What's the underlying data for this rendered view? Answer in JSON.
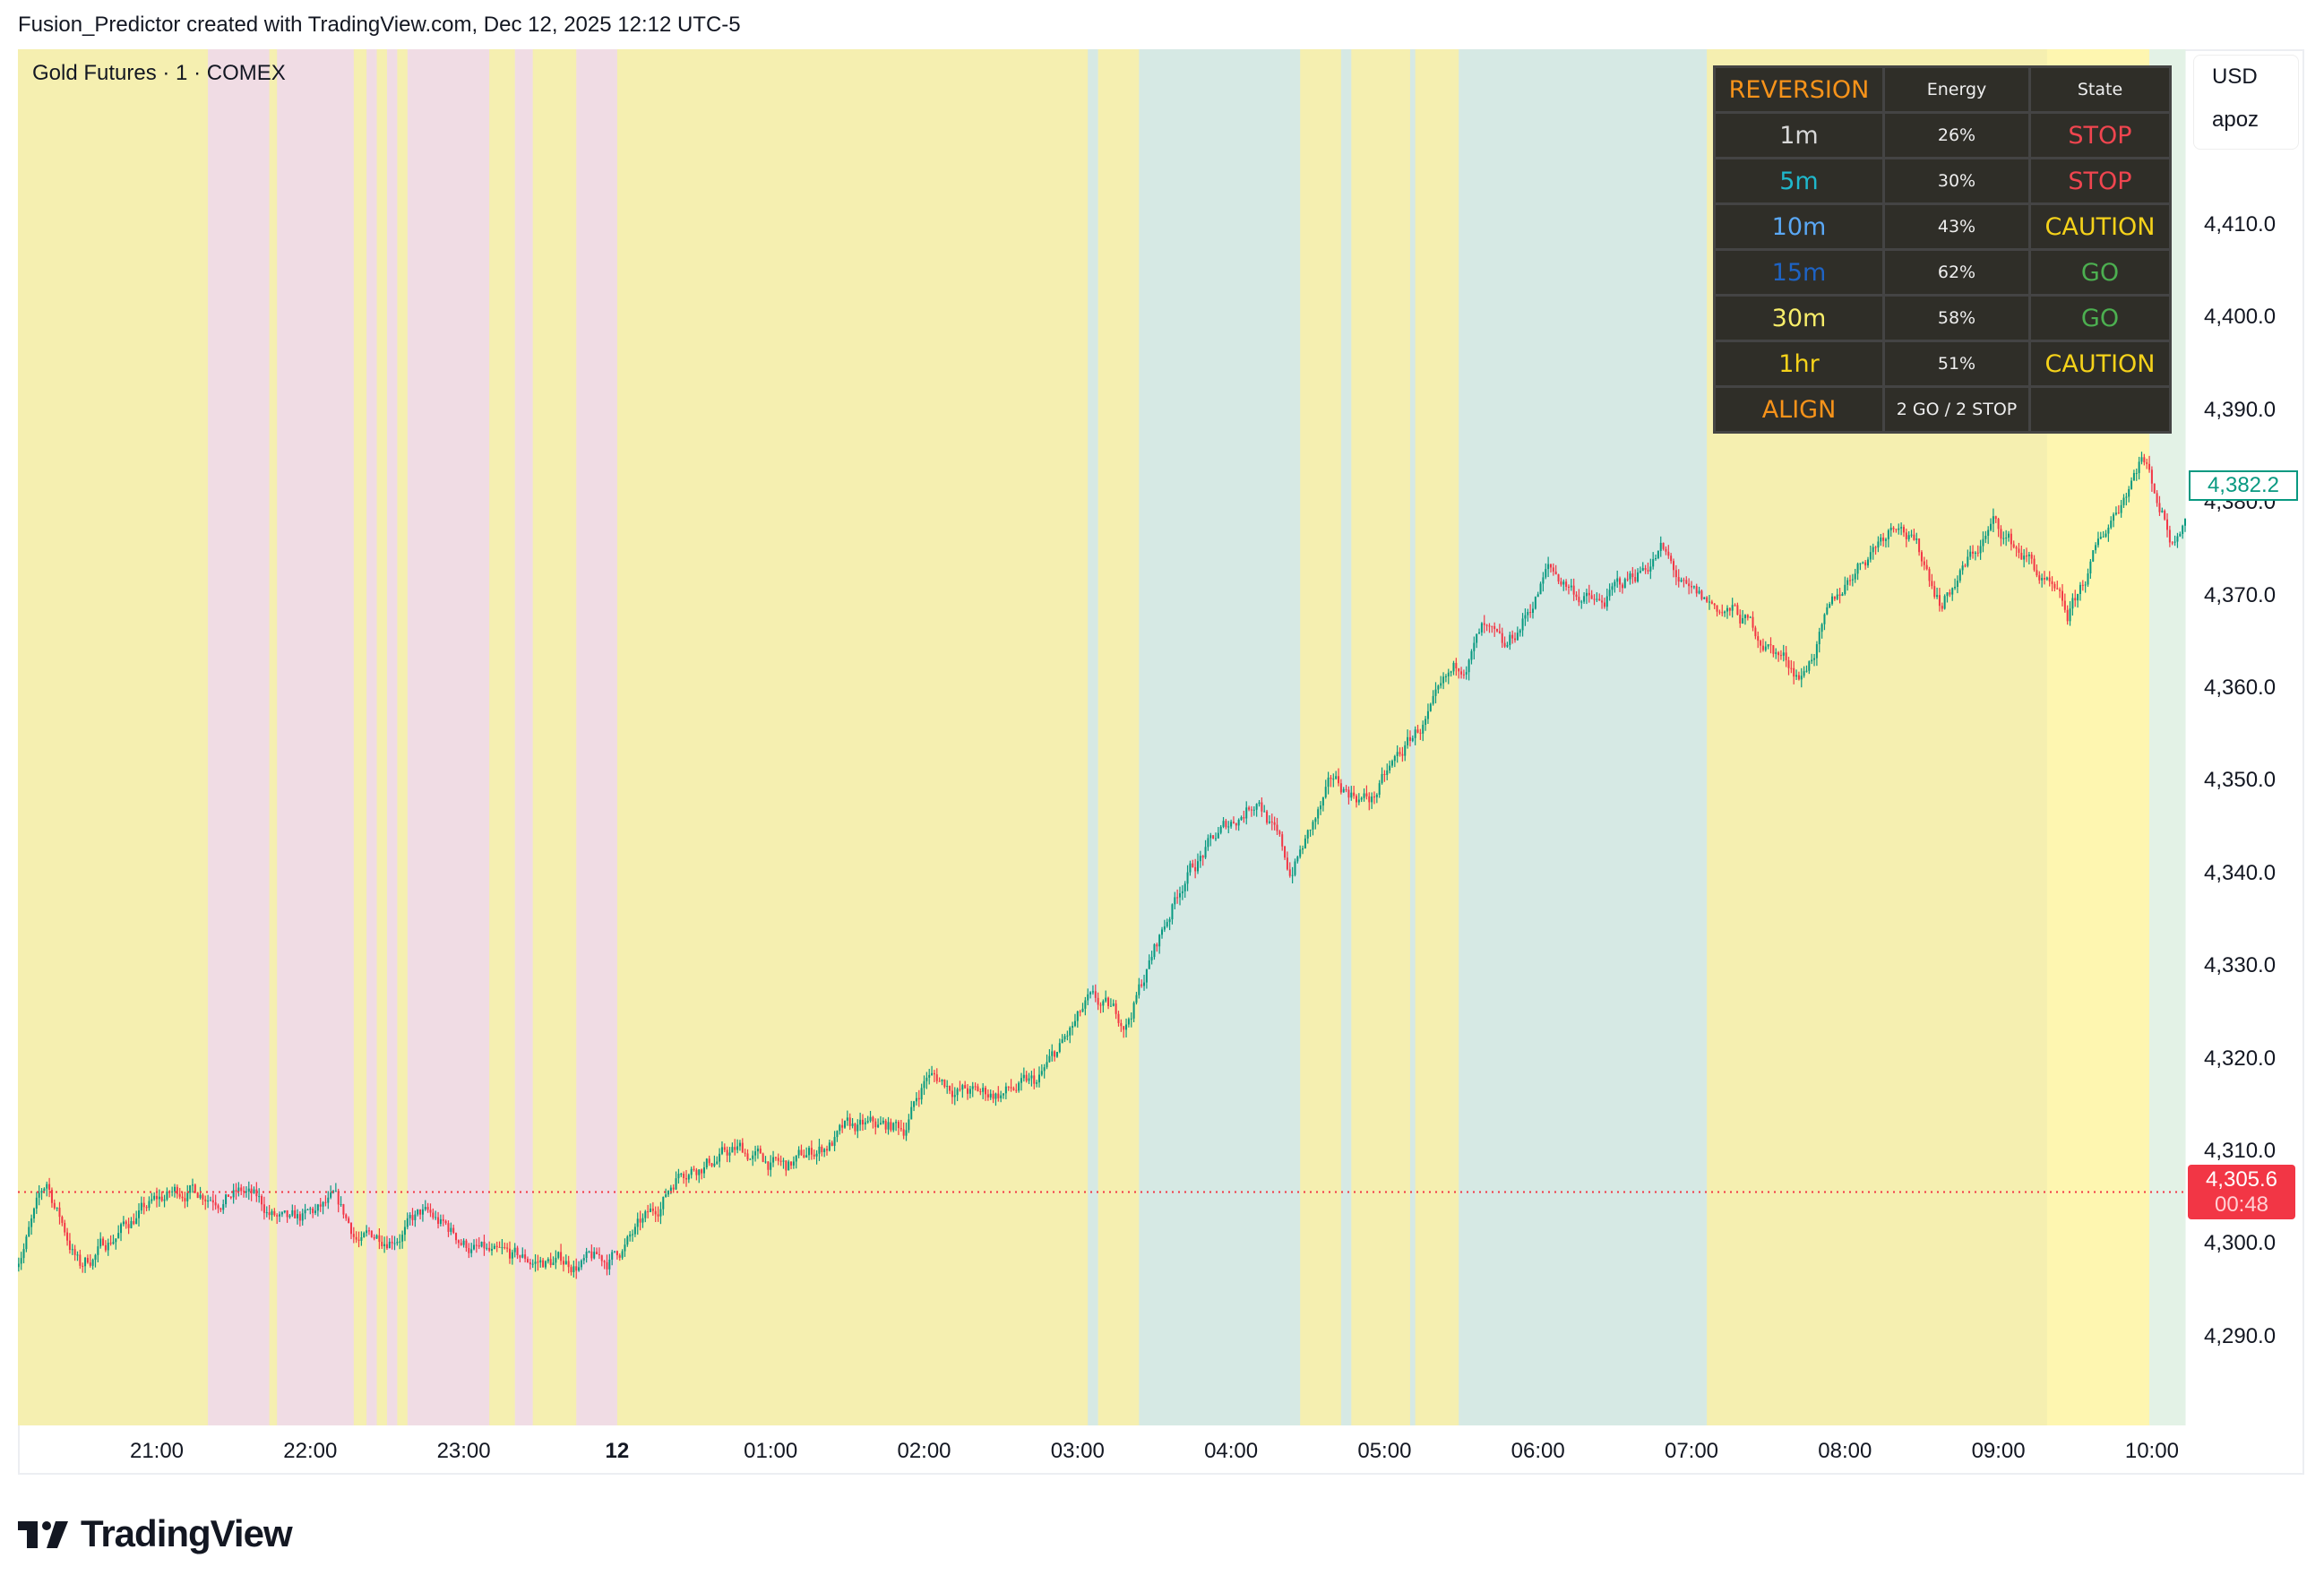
{
  "header": {
    "title": "Fusion_Predictor created with TradingView.com, Dec 12, 2025 12:12 UTC-5"
  },
  "chart": {
    "symbol": "Gold Futures · 1 · COMEX",
    "currency": "USD",
    "unit_label": "apoz",
    "price_ticks": [
      "4,410.0",
      "4,400.0",
      "4,390.0",
      "4,380.0",
      "4,370.0",
      "4,360.0",
      "4,350.0",
      "4,340.0",
      "4,330.0",
      "4,320.0",
      "4,310.0",
      "4,300.0",
      "4,290.0"
    ],
    "time_ticks": [
      {
        "label": "21:00",
        "time": "21:00",
        "bold": false
      },
      {
        "label": "22:00",
        "time": "22:00",
        "bold": false
      },
      {
        "label": "23:00",
        "time": "23:00",
        "bold": false
      },
      {
        "label": "12",
        "time": "00:00",
        "bold": true
      },
      {
        "label": "01:00",
        "time": "01:00",
        "bold": false
      },
      {
        "label": "02:00",
        "time": "02:00",
        "bold": false
      },
      {
        "label": "03:00",
        "time": "03:00",
        "bold": false
      },
      {
        "label": "04:00",
        "time": "04:00",
        "bold": false
      },
      {
        "label": "05:00",
        "time": "05:00",
        "bold": false
      },
      {
        "label": "06:00",
        "time": "06:00",
        "bold": false
      },
      {
        "label": "07:00",
        "time": "07:00",
        "bold": false
      },
      {
        "label": "08:00",
        "time": "08:00",
        "bold": false
      },
      {
        "label": "09:00",
        "time": "09:00",
        "bold": false
      },
      {
        "label": "10:00",
        "time": "10:00",
        "bold": false
      }
    ],
    "last_price": "4,382.2",
    "current_price": "4,305.6",
    "current_price_value": 4305.6,
    "countdown": "00:48",
    "colors": {
      "up": "#089981",
      "down": "#f23645",
      "yellow": "#f5efb0",
      "pink": "#f0dce4",
      "teal": "#d6e9e4",
      "bright_yellow": "#fef6b0",
      "light_green": "#e3f2e6"
    },
    "background_zones": [
      [
        "20:05",
        "21:20",
        "yellow"
      ],
      [
        "21:20",
        "21:44",
        "pink"
      ],
      [
        "21:44",
        "21:47",
        "yellow"
      ],
      [
        "21:47",
        "22:17",
        "pink"
      ],
      [
        "22:17",
        "22:22",
        "yellow"
      ],
      [
        "22:22",
        "22:26",
        "pink"
      ],
      [
        "22:26",
        "22:30",
        "yellow"
      ],
      [
        "22:30",
        "22:34",
        "pink"
      ],
      [
        "22:34",
        "22:38",
        "yellow"
      ],
      [
        "22:38",
        "22:41",
        "pink"
      ],
      [
        "22:41",
        "23:10",
        "pink"
      ],
      [
        "23:10",
        "23:20",
        "yellow"
      ],
      [
        "23:20",
        "23:27",
        "pink"
      ],
      [
        "23:27",
        "23:44",
        "yellow"
      ],
      [
        "23:44",
        "00:00",
        "pink"
      ],
      [
        "00:00",
        "03:04",
        "yellow"
      ],
      [
        "03:04",
        "03:08",
        "teal"
      ],
      [
        "03:08",
        "03:24",
        "yellow"
      ],
      [
        "03:24",
        "04:27",
        "teal"
      ],
      [
        "04:27",
        "04:43",
        "yellow"
      ],
      [
        "04:43",
        "04:47",
        "teal"
      ],
      [
        "04:47",
        "04:57",
        "yellow"
      ],
      [
        "04:57",
        "05:10",
        "yellow"
      ],
      [
        "05:10",
        "05:12",
        "teal"
      ],
      [
        "05:12",
        "05:25",
        "yellow"
      ],
      [
        "05:25",
        "05:29",
        "yellow"
      ],
      [
        "05:29",
        "07:06",
        "teal"
      ],
      [
        "07:06",
        "09:19",
        "yellow"
      ],
      [
        "09:19",
        "09:59",
        "bright_yellow"
      ],
      [
        "09:59",
        "10:13",
        "light_green"
      ]
    ],
    "price_path": [
      [
        "20:05",
        4298.3
      ],
      [
        "20:17",
        4306.3
      ],
      [
        "20:30",
        4297.5
      ],
      [
        "20:51",
        4303
      ],
      [
        "21:11",
        4306
      ],
      [
        "21:34",
        4305.5
      ],
      [
        "21:52",
        4301.5
      ],
      [
        "22:09",
        4304
      ],
      [
        "22:20",
        4300
      ],
      [
        "22:44",
        4303
      ],
      [
        "23:13",
        4298
      ],
      [
        "23:33",
        4298
      ],
      [
        "23:56",
        4298
      ],
      [
        "00:14",
        4303
      ],
      [
        "00:25",
        4308.5
      ],
      [
        "00:48",
        4310
      ],
      [
        "01:06",
        4308
      ],
      [
        "01:29",
        4312
      ],
      [
        "01:52",
        4312.5
      ],
      [
        "02:01",
        4318.3
      ],
      [
        "02:21",
        4316
      ],
      [
        "02:44",
        4317
      ],
      [
        "03:04",
        4325.5
      ],
      [
        "03:19",
        4324
      ],
      [
        "03:42",
        4340
      ],
      [
        "04:11",
        4348.7
      ],
      [
        "04:23",
        4340
      ],
      [
        "04:40",
        4349.5
      ],
      [
        "04:55",
        4348
      ],
      [
        "05:12",
        4355
      ],
      [
        "05:21",
        4358
      ],
      [
        "05:38",
        4366
      ],
      [
        "05:47",
        4363
      ],
      [
        "06:04",
        4372.7
      ],
      [
        "06:24",
        4368.7
      ],
      [
        "06:48",
        4375
      ],
      [
        "06:59",
        4369.5
      ],
      [
        "07:17",
        4368
      ],
      [
        "07:43",
        4361.5
      ],
      [
        "08:03",
        4372.7
      ],
      [
        "08:21",
        4379
      ],
      [
        "08:38",
        4369.5
      ],
      [
        "08:58",
        4377.5
      ],
      [
        "09:13",
        4373.5
      ],
      [
        "09:27",
        4367
      ],
      [
        "09:42",
        4377
      ],
      [
        "09:56",
        4385.5
      ],
      [
        "10:08",
        4376
      ],
      [
        "10:13",
        4379.8
      ]
    ]
  },
  "indicator_table": {
    "header": {
      "title": "REVERSION",
      "energy": "Energy",
      "state": "State"
    },
    "rows": [
      {
        "tf": "1m",
        "tf_color": "#d8d8d8",
        "energy": "26%",
        "state": "STOP",
        "state_color": "#f0454f"
      },
      {
        "tf": "5m",
        "tf_color": "#1fb8cc",
        "energy": "30%",
        "state": "STOP",
        "state_color": "#f0454f"
      },
      {
        "tf": "10m",
        "tf_color": "#5aa8f5",
        "energy": "43%",
        "state": "CAUTION",
        "state_color": "#f5d21a"
      },
      {
        "tf": "15m",
        "tf_color": "#1e63c4",
        "energy": "62%",
        "state": "GO",
        "state_color": "#4caf50"
      },
      {
        "tf": "30m",
        "tf_color": "#f8ee6a",
        "energy": "58%",
        "state": "GO",
        "state_color": "#4caf50"
      },
      {
        "tf": "1hr",
        "tf_color": "#f5d21a",
        "energy": "51%",
        "state": "CAUTION",
        "state_color": "#f5d21a"
      }
    ],
    "align": {
      "label": "ALIGN",
      "value": "2 GO / 2 STOP",
      "state": ""
    },
    "accent_color": "#f7931a"
  },
  "footer": {
    "logo_text": "TradingView"
  }
}
